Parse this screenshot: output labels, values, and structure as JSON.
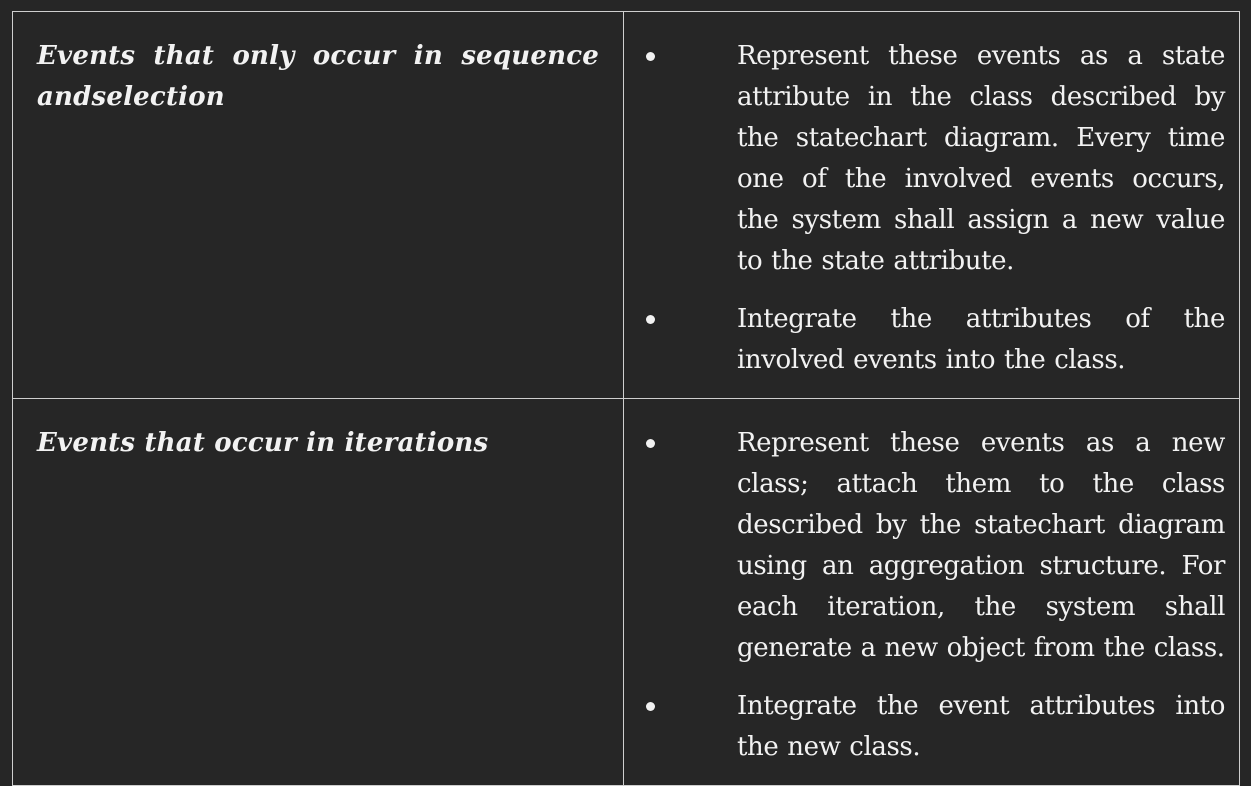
{
  "rows": [
    {
      "category": "Events that only occur in sequence andselection",
      "bullets": [
        "Represent these events as a state attribute in the class described by the statechart diagram. Every time one of the involved events occurs, the system shall assign a new value to the state attribute.",
        "Integrate the attributes of the involved events into the class."
      ]
    },
    {
      "category": "Events that occur in iterations",
      "bullets": [
        "Represent these events as a new class; attach them to the class described by the statechart diagram using an aggregation structure. For each iteration, the system shall generate a new object from the class.",
        "Integrate the event attributes into the new class."
      ]
    }
  ]
}
